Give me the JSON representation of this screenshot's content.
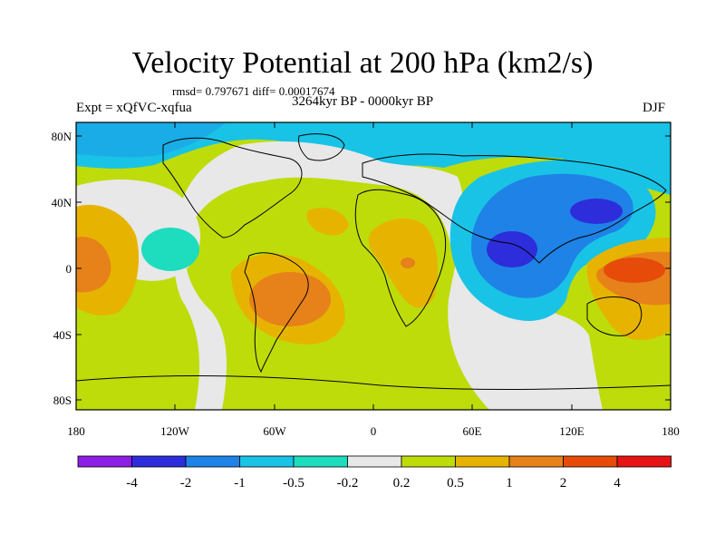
{
  "title": "Velocity Potential at 200 hPa (km2/s)",
  "stats": "rmsd= 0.797671 diff= 0.00017674",
  "period": "3264kyr BP - 0000kyr BP",
  "experiment": "Expt = xQfVC-xqfua",
  "season": "DJF",
  "axes": {
    "lat_labels": [
      "80N",
      "40N",
      "0",
      "40S",
      "80S"
    ],
    "lon_labels": [
      "180",
      "120W",
      "60W",
      "0",
      "60E",
      "120E",
      "180"
    ]
  },
  "colorbar": {
    "labels": [
      "-4",
      "-2",
      "-1",
      "-0.5",
      "-0.2",
      "0.2",
      "0.5",
      "1",
      "2",
      "4"
    ],
    "colors": [
      "#8c1ee6",
      "#2d2ddb",
      "#1e82e6",
      "#19c3e6",
      "#1edcbe",
      "#e8e8e8",
      "#bedc0a",
      "#e6b400",
      "#e68219",
      "#e64b0a",
      "#e61414"
    ]
  }
}
